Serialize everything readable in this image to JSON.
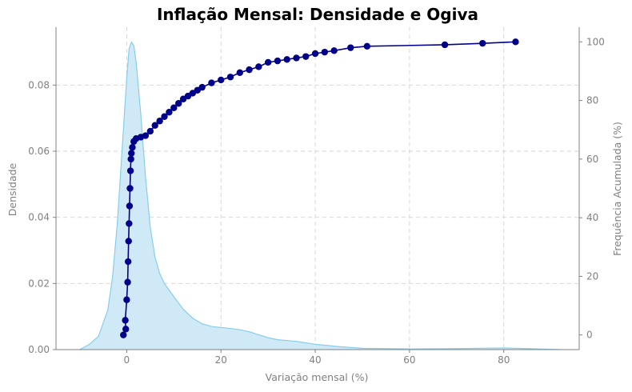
{
  "chart_data": {
    "type": "area",
    "title": "Inflação Mensal: Densidade e Ogiva",
    "xlabel": "Variação mensal (%)",
    "ylabel": "Densidade",
    "y2label": "Frequência Acumulada (%)",
    "xlim": [
      -15,
      96
    ],
    "ylim": [
      0,
      0.0975
    ],
    "y2lim": [
      -5,
      105
    ],
    "x_ticks": [
      0,
      20,
      40,
      60,
      80
    ],
    "y_ticks": [
      0.0,
      0.02,
      0.04,
      0.06,
      0.08
    ],
    "y_tick_labels": [
      "0.00",
      "0.02",
      "0.04",
      "0.06",
      "0.08"
    ],
    "y2_ticks": [
      0,
      20,
      40,
      60,
      80,
      100
    ],
    "grid": true,
    "colors": {
      "density_fill": "#cfe9f6",
      "density_line": "#87ceeb",
      "ogive_line": "#00008b",
      "ogive_marker": "#00008b",
      "grid": "#d3d3d3",
      "axis": "#808080"
    },
    "series": [
      {
        "kind": "density",
        "axis": "left",
        "x": [
          -10,
          -8,
          -6,
          -4,
          -3,
          -2,
          -1,
          0,
          0.5,
          1,
          1.5,
          2,
          3,
          4,
          5,
          6,
          7,
          8,
          10,
          12,
          14,
          16,
          18,
          20,
          22,
          24,
          26,
          28,
          30,
          32,
          36,
          40,
          45,
          50,
          60,
          70,
          80,
          85,
          92
        ],
        "y": [
          0.0,
          0.0015,
          0.004,
          0.012,
          0.022,
          0.038,
          0.06,
          0.082,
          0.091,
          0.093,
          0.092,
          0.087,
          0.071,
          0.052,
          0.037,
          0.028,
          0.023,
          0.02,
          0.016,
          0.0122,
          0.0095,
          0.0078,
          0.007,
          0.0067,
          0.0064,
          0.006,
          0.0054,
          0.0045,
          0.0036,
          0.003,
          0.0025,
          0.0016,
          0.0009,
          0.0004,
          0.0002,
          0.0003,
          0.0005,
          0.0003,
          0.0
        ]
      },
      {
        "kind": "ogive",
        "axis": "right",
        "x": [
          -0.7,
          -0.2,
          -0.3,
          0.0,
          0.2,
          0.3,
          0.4,
          0.5,
          0.6,
          0.7,
          0.8,
          0.9,
          1.0,
          1.2,
          1.5,
          2.0,
          3.0,
          4.0,
          5.0,
          6.0,
          7.0,
          8.0,
          9.0,
          10.0,
          11.0,
          12.0,
          13.0,
          14.0,
          15.0,
          16.0,
          18.0,
          20.0,
          22.0,
          24.0,
          26.0,
          28.0,
          30.0,
          32.0,
          34.0,
          36.0,
          38.0,
          40.0,
          42.0,
          44.0,
          47.5,
          51.0,
          67.5,
          75.5,
          82.5
        ],
        "y": [
          0.0,
          2.0,
          5.0,
          12.0,
          18.0,
          25.0,
          32.0,
          38.0,
          44.0,
          50.0,
          56.0,
          60.0,
          62.0,
          64.0,
          66.0,
          67.0,
          67.5,
          68.0,
          69.5,
          71.5,
          73.0,
          74.5,
          76.0,
          77.5,
          79.0,
          80.5,
          81.5,
          82.5,
          83.5,
          84.5,
          86.0,
          87.0,
          88.0,
          89.5,
          90.5,
          91.5,
          93.0,
          93.5,
          94.0,
          94.5,
          95.0,
          96.0,
          96.5,
          97.0,
          98.0,
          98.5,
          99.0,
          99.5,
          100.0
        ]
      }
    ]
  }
}
